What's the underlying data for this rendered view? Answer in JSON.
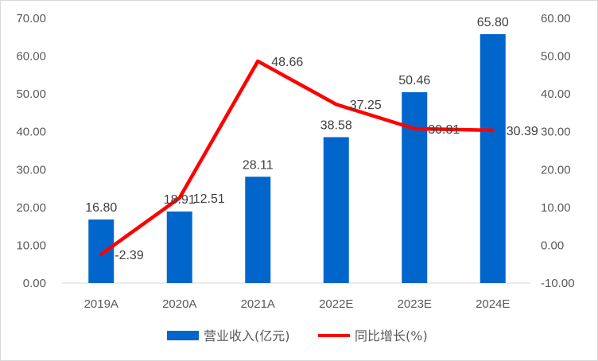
{
  "chart_data": {
    "type": "bar",
    "categories": [
      "2019A",
      "2020A",
      "2021A",
      "2022E",
      "2023E",
      "2024E"
    ],
    "series": [
      {
        "name": "营业收入(亿元)",
        "type": "bar",
        "axis": "left",
        "color": "#0066CC",
        "values": [
          16.8,
          18.91,
          28.11,
          38.58,
          50.46,
          65.8
        ],
        "labels": [
          "16.80",
          "18.91",
          "28.11",
          "38.58",
          "50.46",
          "65.80"
        ]
      },
      {
        "name": "同比增长(%)",
        "type": "line",
        "axis": "right",
        "color": "#FF0000",
        "values": [
          -2.39,
          12.51,
          48.66,
          37.25,
          30.81,
          30.39
        ],
        "labels": [
          "-2.39",
          "12.51",
          "48.66",
          "37.25",
          "30.81",
          "30.39"
        ]
      }
    ],
    "y_left": {
      "ylim": [
        0,
        70
      ],
      "ticks": [
        "0.00",
        "10.00",
        "20.00",
        "30.00",
        "40.00",
        "50.00",
        "60.00",
        "70.00"
      ]
    },
    "y_right": {
      "ylim": [
        -10,
        60
      ],
      "ticks": [
        "-10.00",
        "0.00",
        "10.00",
        "20.00",
        "30.00",
        "40.00",
        "50.00",
        "60.00"
      ]
    },
    "grid": false,
    "legend_position": "bottom"
  }
}
